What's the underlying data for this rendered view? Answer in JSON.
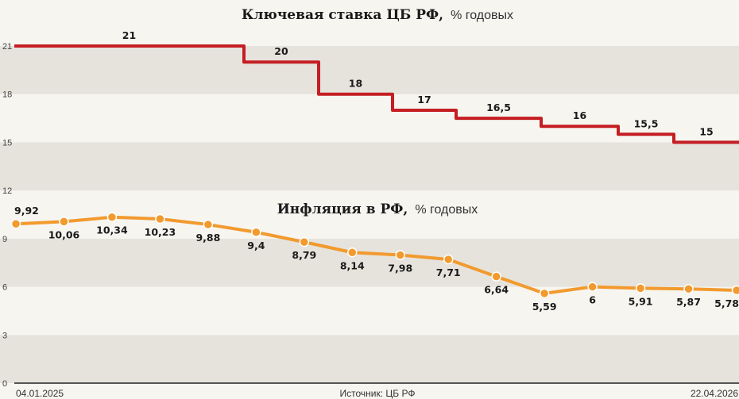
{
  "chart_data": [
    {
      "type": "line",
      "title": "Ключевая ставка ЦБ РФ,",
      "subtitle": "% годовых",
      "step": true,
      "color": "#c41e23",
      "points": [
        {
          "value": 21,
          "label": "21"
        },
        {
          "value": 20,
          "label": "20"
        },
        {
          "value": 18,
          "label": "18"
        },
        {
          "value": 17,
          "label": "17"
        },
        {
          "value": 16.5,
          "label": "16,5"
        },
        {
          "value": 16,
          "label": "16"
        },
        {
          "value": 15.5,
          "label": "15,5"
        },
        {
          "value": 15,
          "label": "15"
        }
      ]
    },
    {
      "type": "line",
      "title": "Инфляция в РФ,",
      "subtitle": "% годовых",
      "markers": true,
      "color": "#f29a2e",
      "values": [
        9.92,
        10.06,
        10.34,
        10.23,
        9.88,
        9.4,
        8.79,
        8.14,
        7.98,
        7.71,
        6.64,
        5.59,
        6,
        5.91,
        5.87,
        5.78
      ],
      "labels": [
        "9,92",
        "10,06",
        "10,34",
        "10,23",
        "9,88",
        "9,4",
        "8,79",
        "8,14",
        "7,98",
        "7,71",
        "6,64",
        "5,59",
        "6",
        "5,91",
        "5,87",
        "5,78"
      ]
    }
  ],
  "axis": {
    "ylim": [
      0,
      21
    ],
    "yticks": [
      0,
      3,
      6,
      9,
      12,
      15,
      18,
      21
    ],
    "x_start_label": "04.01.2025",
    "x_end_label": "22.04.2026",
    "grid": true
  },
  "source": "Источник: ЦБ РФ"
}
